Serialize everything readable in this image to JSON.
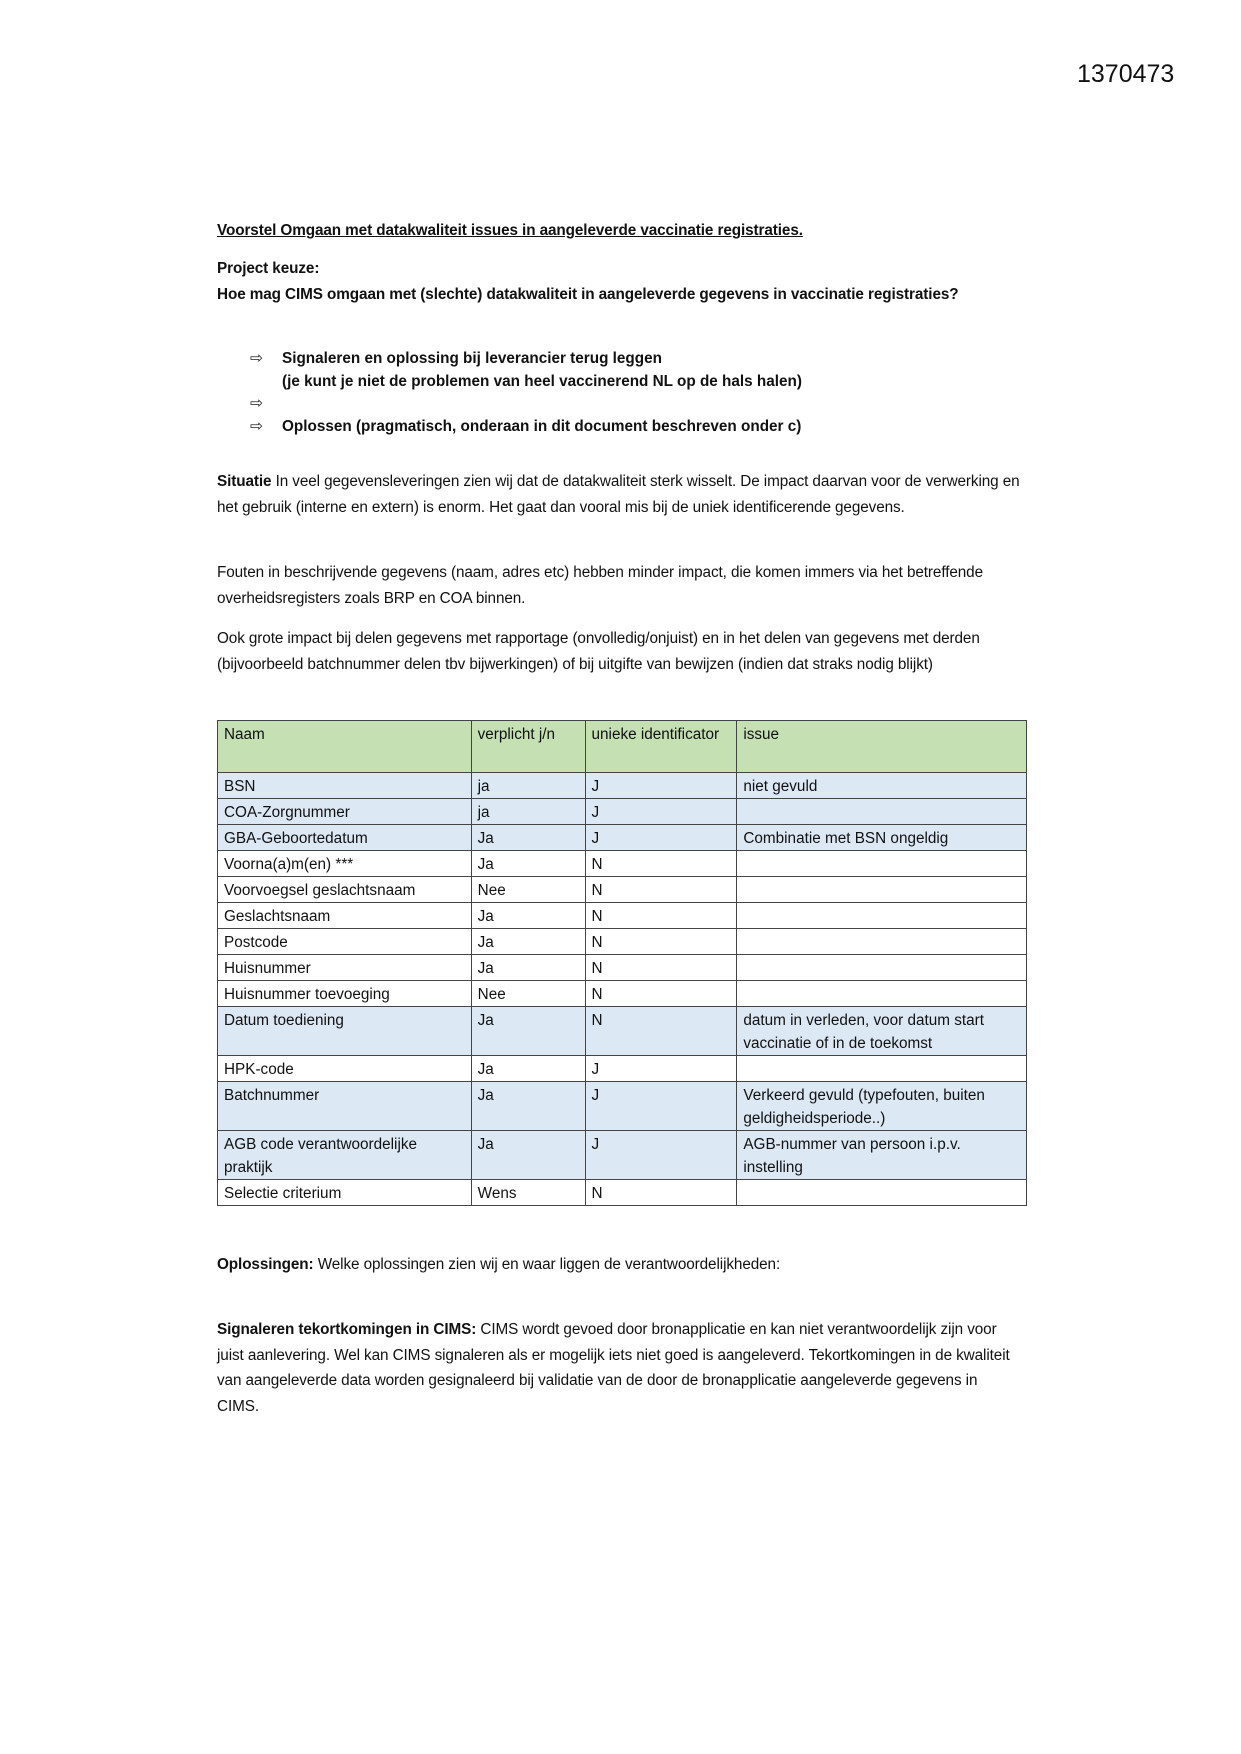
{
  "document_number": "1370473",
  "title": "Voorstel Omgaan met datakwaliteit issues in aangeleverde vaccinatie registraties.",
  "project": {
    "label": "Project keuze:",
    "question": "Hoe mag CIMS omgaan met (slechte) datakwaliteit in aangeleverde gegevens in vaccinatie registraties?"
  },
  "bullets": [
    {
      "line1": "Signaleren en oplossing bij leverancier terug leggen",
      "line2": "(je kunt je niet de problemen van heel vaccinerend NL op de hals halen)"
    },
    {
      "line1": "",
      "line2": ""
    },
    {
      "line1": "Oplossen (pragmatisch, onderaan in dit document beschreven onder c)",
      "line2": ""
    }
  ],
  "arrow_icon": "⇨",
  "situatie": {
    "label": "Situatie",
    "text": " In veel gegevensleveringen zien wij dat de datakwaliteit sterk wisselt. De impact daarvan voor de verwerking en het gebruik (interne en extern) is enorm. Het gaat dan vooral mis bij de uniek identificerende gegevens."
  },
  "fouten": "Fouten in beschrijvende gegevens (naam, adres etc) hebben minder impact, die komen immers via het betreffende overheidsregisters zoals BRP en COA binnen.",
  "ook": "Ook grote impact bij delen gegevens met rapportage (onvolledig/onjuist) en in het delen van gegevens met derden (bijvoorbeeld batchnummer delen tbv bijwerkingen) of bij uitgifte van bewijzen (indien dat straks nodig blijkt)",
  "table": {
    "header_color": "#c5e0b3",
    "highlight_color": "#dde8f5",
    "headers": [
      "Naam",
      "verplicht j/n",
      "unieke identificator",
      "issue"
    ],
    "rows": [
      {
        "naam": "BSN",
        "verplicht": "ja",
        "uniek": "J",
        "issue": "niet gevuld",
        "highlight": true
      },
      {
        "naam": "COA-Zorgnummer",
        "verplicht": "ja",
        "uniek": "J",
        "issue": "",
        "highlight": true
      },
      {
        "naam": "GBA-Geboortedatum",
        "verplicht": "Ja",
        "uniek": "J",
        "issue": " Combinatie met BSN ongeldig",
        "highlight": true
      },
      {
        "naam": "Voorna(a)m(en) ***",
        "verplicht": "Ja",
        "uniek": "N",
        "issue": "",
        "highlight": false
      },
      {
        "naam": "Voorvoegsel geslachtsnaam",
        "verplicht": "Nee",
        "uniek": "N",
        "issue": "",
        "highlight": false
      },
      {
        "naam": "Geslachtsnaam",
        "verplicht": "Ja",
        "uniek": "N",
        "issue": "",
        "highlight": false
      },
      {
        "naam": "Postcode",
        "verplicht": "Ja",
        "uniek": "N",
        "issue": "",
        "highlight": false
      },
      {
        "naam": "Huisnummer",
        "verplicht": "Ja",
        "uniek": "N",
        "issue": "",
        "highlight": false
      },
      {
        "naam": "Huisnummer toevoeging",
        "verplicht": "Nee",
        "uniek": "N",
        "issue": "",
        "highlight": false
      },
      {
        "naam": "Datum toediening",
        "verplicht": "Ja",
        "uniek": "N",
        "issue": "datum in verleden, voor datum start vaccinatie of in de toekomst",
        "highlight": true
      },
      {
        "naam": "HPK-code",
        "verplicht": "Ja",
        "uniek": "J",
        "issue": "",
        "highlight": false
      },
      {
        "naam": "Batchnummer",
        "verplicht": "Ja",
        "uniek": "J",
        "issue": "Verkeerd gevuld (typefouten, buiten geldigheidsperiode..)",
        "highlight": true
      },
      {
        "naam": "AGB code verantwoordelijke praktijk",
        "verplicht": "Ja",
        "uniek": "J",
        "issue": "AGB-nummer van persoon i.p.v. instelling",
        "highlight": true
      },
      {
        "naam": "Selectie criterium",
        "verplicht": "Wens",
        "uniek": "N",
        "issue": "",
        "highlight": false
      }
    ]
  },
  "oplossingen": {
    "label": "Oplossingen:",
    "text": " Welke oplossingen zien wij en waar liggen de verantwoordelijkheden:"
  },
  "signaleren": {
    "label": "Signaleren tekortkomingen in CIMS:",
    "text": " CIMS wordt gevoed door bronapplicatie en kan niet verantwoordelijk zijn voor juist aanlevering. Wel kan CIMS signaleren als er mogelijk iets niet goed is aangeleverd. Tekortkomingen in de kwaliteit van aangeleverde data worden gesignaleerd bij validatie van de door de bronapplicatie aangeleverde gegevens in CIMS."
  }
}
